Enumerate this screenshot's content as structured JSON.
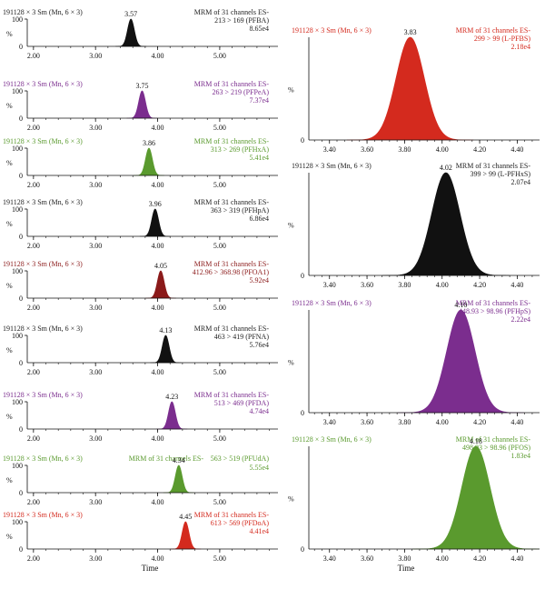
{
  "xlabel": "Time",
  "chart_data": [
    {
      "type": "area",
      "sample": "191128 × 3 Sm (Mn, 6 × 3)",
      "channel": "MRM of 31 channels ES-",
      "transition": "213 > 169 (PFBA)",
      "intensity": "8.65e4",
      "peak_rt": 3.57,
      "peak_label": "3.57",
      "peak_height": 100,
      "color": "#111111",
      "xlim": [
        1.9,
        5.85
      ],
      "ylim": [
        0,
        100
      ],
      "xticks": [
        {
          "v": 2.0,
          "label": "2.00"
        },
        {
          "v": 3.0,
          "label": "3.00"
        },
        {
          "v": 4.0,
          "label": "4.00"
        },
        {
          "v": 5.0,
          "label": "5.00"
        }
      ],
      "ytick_labels": {
        "top": "100",
        "bottom": "0",
        "unit": "%"
      }
    },
    {
      "type": "area",
      "sample": "191128 × 3 Sm (Mn, 6 × 3)",
      "channel": "MRM of 31 channels ES-",
      "transition": "263 > 219 (PFPeA)",
      "intensity": "7.37e4",
      "peak_rt": 3.75,
      "peak_label": "3.75",
      "peak_height": 100,
      "color": "#7b2d8e",
      "xlim": [
        1.9,
        5.85
      ],
      "ylim": [
        0,
        100
      ],
      "xticks": [
        {
          "v": 2.0,
          "label": "2.00"
        },
        {
          "v": 3.0,
          "label": "3.00"
        },
        {
          "v": 4.0,
          "label": "4.00"
        },
        {
          "v": 5.0,
          "label": "5.00"
        }
      ],
      "ytick_labels": {
        "top": "100",
        "bottom": "0",
        "unit": "%"
      }
    },
    {
      "type": "area",
      "sample": "191128 × 3 Sm (Mn, 6 × 3)",
      "channel": "MRM of 31 channels ES-",
      "transition": "313 > 269 (PFHxA)",
      "intensity": "5.41e4",
      "peak_rt": 3.86,
      "peak_label": "3.86",
      "peak_height": 100,
      "color": "#5a9a2e",
      "xlim": [
        1.9,
        5.85
      ],
      "ylim": [
        0,
        100
      ],
      "xticks": [
        {
          "v": 2.0,
          "label": "2.00"
        },
        {
          "v": 3.0,
          "label": "3.00"
        },
        {
          "v": 4.0,
          "label": "4.00"
        },
        {
          "v": 5.0,
          "label": "5.00"
        }
      ],
      "ytick_labels": {
        "top": "100",
        "bottom": "0",
        "unit": "%"
      }
    },
    {
      "type": "area",
      "sample": "191128 × 3 Sm (Mn, 6 × 3)",
      "channel": "MRM of 31 channels ES-",
      "transition": "363 > 319 (PFHpA)",
      "intensity": "6.86e4",
      "peak_rt": 3.96,
      "peak_label": "3.96",
      "peak_height": 100,
      "color": "#111111",
      "xlim": [
        1.9,
        5.85
      ],
      "ylim": [
        0,
        100
      ],
      "xticks": [
        {
          "v": 2.0,
          "label": "2.00"
        },
        {
          "v": 3.0,
          "label": "3.00"
        },
        {
          "v": 4.0,
          "label": "4.00"
        },
        {
          "v": 5.0,
          "label": "5.00"
        }
      ],
      "ytick_labels": {
        "top": "100",
        "bottom": "0",
        "unit": "%"
      }
    },
    {
      "type": "area",
      "sample": "191128 × 3 Sm (Mn, 6 × 3)",
      "channel": "MRM of 31 channels ES-",
      "transition": "412.96 > 368.98 (PFOA1)",
      "intensity": "5.92e4",
      "peak_rt": 4.05,
      "peak_label": "4.05",
      "peak_height": 100,
      "color": "#8b1a1a",
      "xlim": [
        1.9,
        5.85
      ],
      "ylim": [
        0,
        100
      ],
      "xticks": [
        {
          "v": 2.0,
          "label": "2.00"
        },
        {
          "v": 3.0,
          "label": "3.00"
        },
        {
          "v": 4.0,
          "label": "4.00"
        },
        {
          "v": 5.0,
          "label": "5.00"
        }
      ],
      "ytick_labels": {
        "top": "100",
        "bottom": "0",
        "unit": "%"
      }
    },
    {
      "type": "area",
      "sample": "191128 × 3 Sm (Mn, 6 × 3)",
      "channel": "MRM of 31 channels ES-",
      "transition": "463 > 419 (PFNA)",
      "intensity": "5.76e4",
      "peak_rt": 4.13,
      "peak_label": "4.13",
      "peak_height": 100,
      "color": "#111111",
      "xlim": [
        1.9,
        5.85
      ],
      "ylim": [
        0,
        100
      ],
      "xticks": [
        {
          "v": 2.0,
          "label": "2.00"
        },
        {
          "v": 3.0,
          "label": "3.00"
        },
        {
          "v": 4.0,
          "label": "4.00"
        },
        {
          "v": 5.0,
          "label": "5.00"
        }
      ],
      "ytick_labels": {
        "top": "100",
        "bottom": "0",
        "unit": "%"
      }
    },
    {
      "type": "area",
      "sample": "191128 × 3 Sm (Mn, 6 × 3)",
      "channel": "MRM of 31 channels ES-",
      "transition": "513 > 469 (PFDA)",
      "intensity": "4.74e4",
      "peak_rt": 4.23,
      "peak_label": "4.23",
      "peak_height": 100,
      "color": "#7b2d8e",
      "xlim": [
        1.9,
        5.85
      ],
      "ylim": [
        0,
        100
      ],
      "xticks": [
        {
          "v": 2.0,
          "label": "2.00"
        },
        {
          "v": 3.0,
          "label": "3.00"
        },
        {
          "v": 4.0,
          "label": "4.00"
        },
        {
          "v": 5.0,
          "label": "5.00"
        }
      ],
      "ytick_labels": {
        "top": "100",
        "bottom": "0",
        "unit": "%"
      }
    },
    {
      "type": "area",
      "sample": "191128 × 3 Sm (Mn, 6 × 3)",
      "channel": "MRM of 31 channels ES-",
      "transition": "563 > 519 (PFUdA)",
      "intensity": "5.55e4",
      "peak_rt": 4.34,
      "peak_label": "4.34",
      "peak_height": 100,
      "color": "#5a9a2e",
      "xlim": [
        1.9,
        5.85
      ],
      "ylim": [
        0,
        100
      ],
      "xticks": [
        {
          "v": 2.0,
          "label": "2.00"
        },
        {
          "v": 3.0,
          "label": "3.00"
        },
        {
          "v": 4.0,
          "label": "4.00"
        },
        {
          "v": 5.0,
          "label": "5.00"
        }
      ],
      "ytick_labels": {
        "top": "100",
        "bottom": "0",
        "unit": "%"
      }
    },
    {
      "type": "area",
      "sample": "191128 × 3 Sm (Mn, 6 × 3)",
      "channel": "MRM of 31 channels ES-",
      "transition": "613 > 569 (PFDoA)",
      "intensity": "4.41e4",
      "peak_rt": 4.45,
      "peak_label": "4.45",
      "peak_height": 100,
      "color": "#d42a1e",
      "xlim": [
        1.9,
        5.85
      ],
      "ylim": [
        0,
        100
      ],
      "xticks": [
        {
          "v": 2.0,
          "label": "2.00"
        },
        {
          "v": 3.0,
          "label": "3.00"
        },
        {
          "v": 4.0,
          "label": "4.00"
        },
        {
          "v": 5.0,
          "label": "5.00"
        }
      ],
      "ytick_labels": {
        "top": "100",
        "bottom": "0",
        "unit": "%"
      }
    },
    {
      "type": "area",
      "sample": "191128 × 3 Sm (Mn, 6 × 3)",
      "channel": "MRM of 31 channels ES-",
      "transition": "299 > 99 (L-PFBS)",
      "intensity": "2.18e4",
      "peak_rt": 3.83,
      "peak_label": "3.83",
      "peak_height": 100,
      "color": "#d42a1e",
      "xlim": [
        3.29,
        4.49
      ],
      "ylim": [
        0,
        100
      ],
      "xticks": [
        {
          "v": 3.4,
          "label": "3.40"
        },
        {
          "v": 3.6,
          "label": "3.60"
        },
        {
          "v": 3.8,
          "label": "3.80"
        },
        {
          "v": 4.0,
          "label": "4.00"
        },
        {
          "v": 4.2,
          "label": "4.20"
        },
        {
          "v": 4.4,
          "label": "4.40"
        }
      ],
      "ytick_labels": {
        "top": "",
        "bottom": "0",
        "unit": "%"
      }
    },
    {
      "type": "area",
      "sample": "191128 × 3 Sm (Mn, 6 × 3)",
      "channel": "MRM of 31 channels ES-",
      "transition": "399 > 99 (L-PFHxS)",
      "intensity": "2.07e4",
      "peak_rt": 4.02,
      "peak_label": "4.02",
      "peak_height": 100,
      "color": "#111111",
      "xlim": [
        3.29,
        4.49
      ],
      "ylim": [
        0,
        100
      ],
      "xticks": [
        {
          "v": 3.4,
          "label": "3.40"
        },
        {
          "v": 3.6,
          "label": "3.60"
        },
        {
          "v": 3.8,
          "label": "3.80"
        },
        {
          "v": 4.0,
          "label": "4.00"
        },
        {
          "v": 4.2,
          "label": "4.20"
        },
        {
          "v": 4.4,
          "label": "4.40"
        }
      ],
      "ytick_labels": {
        "top": "",
        "bottom": "0",
        "unit": "%"
      }
    },
    {
      "type": "area",
      "sample": "191128 × 3 Sm (Mn, 6 × 3)",
      "channel": "MRM of 31 channels ES-",
      "transition": "448.93 > 98.96 (PFHpS)",
      "intensity": "2.22e4",
      "peak_rt": 4.1,
      "peak_label": "4.10",
      "peak_height": 100,
      "color": "#7b2d8e",
      "xlim": [
        3.29,
        4.49
      ],
      "ylim": [
        0,
        100
      ],
      "xticks": [
        {
          "v": 3.4,
          "label": "3.40"
        },
        {
          "v": 3.6,
          "label": "3.60"
        },
        {
          "v": 3.8,
          "label": "3.80"
        },
        {
          "v": 4.0,
          "label": "4.00"
        },
        {
          "v": 4.2,
          "label": "4.20"
        },
        {
          "v": 4.4,
          "label": "4.40"
        }
      ],
      "ytick_labels": {
        "top": "",
        "bottom": "0",
        "unit": "%"
      }
    },
    {
      "type": "area",
      "sample": "191128 × 3 Sm (Mn, 6 × 3)",
      "channel": "MRM of 31 channels ES-",
      "transition": "498.93 > 98.96 (PFOS)",
      "intensity": "1.83e4",
      "peak_rt": 4.18,
      "peak_label": "4.18",
      "peak_height": 100,
      "color": "#5a9a2e",
      "xlim": [
        3.29,
        4.49
      ],
      "ylim": [
        0,
        100
      ],
      "xticks": [
        {
          "v": 3.4,
          "label": "3.40"
        },
        {
          "v": 3.6,
          "label": "3.60"
        },
        {
          "v": 3.8,
          "label": "3.80"
        },
        {
          "v": 4.0,
          "label": "4.00"
        },
        {
          "v": 4.2,
          "label": "4.20"
        },
        {
          "v": 4.4,
          "label": "4.40"
        }
      ],
      "ytick_labels": {
        "top": "",
        "bottom": "0",
        "unit": "%"
      }
    }
  ]
}
